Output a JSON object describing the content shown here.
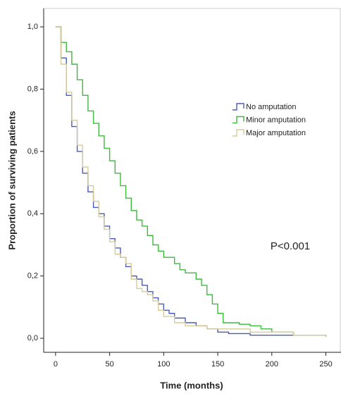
{
  "chart_data": {
    "type": "step",
    "x_label": "Time (months)",
    "y_label": "Proportion of surviving patients",
    "annotation": "P<0.001",
    "xlim": [
      -11,
      264
    ],
    "ylim": [
      -0.045,
      1.059
    ],
    "xticks": [
      0,
      50,
      100,
      150,
      200,
      250
    ],
    "yticks": [
      {
        "value": 0,
        "label": "0,0"
      },
      {
        "value": 0.2,
        "label": "0,2"
      },
      {
        "value": 0.4,
        "label": "0,4"
      },
      {
        "value": 0.6,
        "label": "0,6"
      },
      {
        "value": 0.8,
        "label": "0,8"
      },
      {
        "value": 1,
        "label": "1,0"
      }
    ],
    "legend": "right",
    "series": [
      {
        "name": "No amputation",
        "color": "#4a5cb8",
        "x": [
          0,
          5,
          10,
          15,
          20,
          25,
          30,
          35,
          40,
          45,
          50,
          55,
          60,
          65,
          70,
          75,
          80,
          85,
          90,
          95,
          100,
          105,
          110,
          120,
          130,
          140,
          150,
          160,
          180,
          250
        ],
        "values": [
          1.0,
          0.9,
          0.78,
          0.68,
          0.6,
          0.53,
          0.47,
          0.42,
          0.4,
          0.36,
          0.32,
          0.29,
          0.26,
          0.23,
          0.2,
          0.19,
          0.17,
          0.15,
          0.13,
          0.11,
          0.09,
          0.08,
          0.065,
          0.05,
          0.04,
          0.03,
          0.02,
          0.015,
          0.01,
          0.005
        ]
      },
      {
        "name": "Minor amputation",
        "color": "#3dbb3d",
        "x": [
          0,
          5,
          10,
          15,
          20,
          25,
          30,
          35,
          40,
          45,
          50,
          55,
          60,
          65,
          70,
          75,
          80,
          85,
          90,
          95,
          100,
          110,
          115,
          120,
          130,
          135,
          140,
          145,
          150,
          155,
          170,
          180,
          190,
          200,
          220,
          250
        ],
        "values": [
          1.0,
          0.95,
          0.92,
          0.88,
          0.83,
          0.78,
          0.73,
          0.69,
          0.65,
          0.61,
          0.57,
          0.53,
          0.49,
          0.45,
          0.41,
          0.38,
          0.36,
          0.33,
          0.3,
          0.28,
          0.26,
          0.24,
          0.22,
          0.21,
          0.19,
          0.17,
          0.14,
          0.11,
          0.08,
          0.05,
          0.045,
          0.04,
          0.03,
          0.02,
          0.01,
          0.005
        ]
      },
      {
        "name": "Major amputation",
        "color": "#d6cc9c",
        "x": [
          0,
          5,
          10,
          15,
          20,
          25,
          30,
          35,
          40,
          45,
          50,
          55,
          60,
          65,
          70,
          75,
          80,
          85,
          90,
          95,
          100,
          110,
          120,
          140,
          180,
          220,
          250
        ],
        "values": [
          1.0,
          0.88,
          0.79,
          0.7,
          0.62,
          0.55,
          0.49,
          0.44,
          0.39,
          0.35,
          0.31,
          0.27,
          0.26,
          0.24,
          0.19,
          0.16,
          0.15,
          0.14,
          0.12,
          0.09,
          0.07,
          0.05,
          0.04,
          0.03,
          0.02,
          0.01,
          0.005
        ]
      }
    ]
  }
}
